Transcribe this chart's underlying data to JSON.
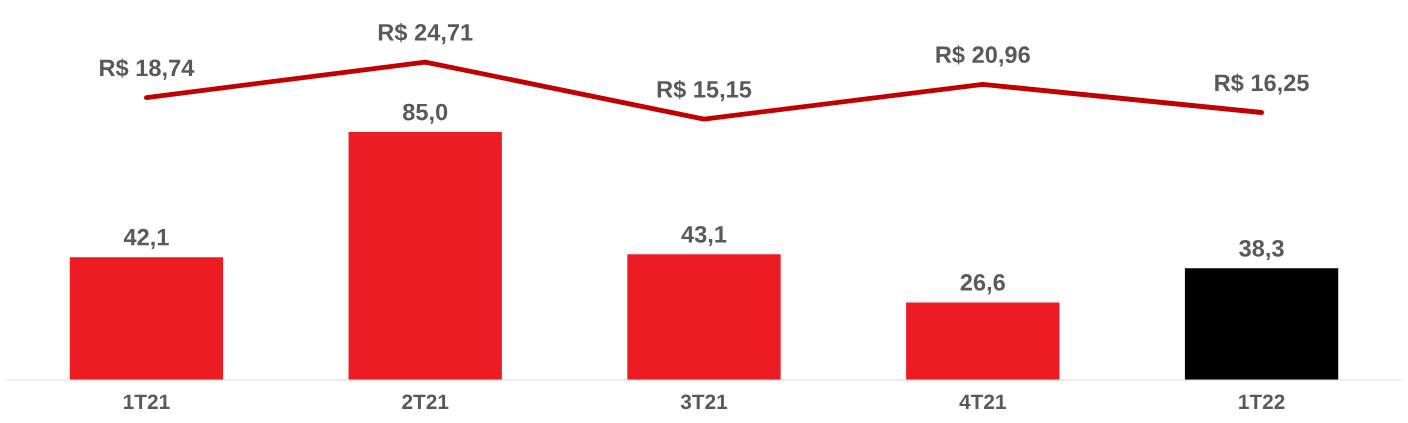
{
  "chart_data": [
    {
      "type": "bar",
      "categories": [
        "1T21",
        "2T21",
        "3T21",
        "4T21",
        "1T22"
      ],
      "colors": [
        "#ed1c24",
        "#ed1c24",
        "#ed1c24",
        "#ed1c24",
        "#000000"
      ],
      "values": [
        42.1,
        85.0,
        43.1,
        26.6,
        38.3
      ],
      "value_labels": [
        "42,1",
        "85,0",
        "43,1",
        "26,6",
        "38,3"
      ]
    },
    {
      "type": "line",
      "categories": [
        null,
        null,
        null,
        null,
        null
      ],
      "color": "#c00000",
      "values": [
        18.74,
        24.71,
        15.15,
        20.96,
        16.25
      ],
      "value_labels": [
        "R$ 18,74",
        "R$ 24,71",
        "R$ 15,15",
        "R$ 20,96",
        "R$ 16,25"
      ]
    }
  ]
}
